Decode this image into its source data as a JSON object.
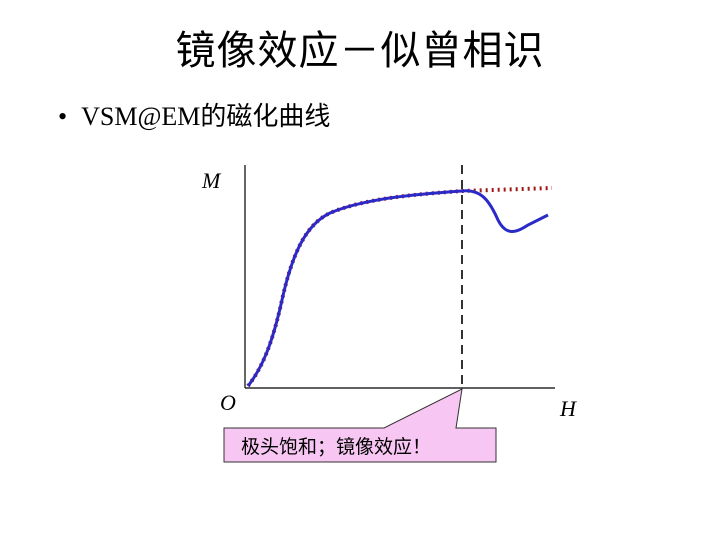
{
  "slide": {
    "title": "镜像效应－似曾相识",
    "bullet_marker": "•",
    "bullet_text": "VSM@EM的磁化曲线"
  },
  "diagram": {
    "y_axis_label": "M",
    "x_axis_label": "H",
    "origin_label": "O",
    "callout_text": "极头饱和；镜像效应！"
  },
  "colors": {
    "measured_curve": "#2a2ac8",
    "ideal_curve": "#a01818",
    "callout_fill": "#f7c6f2",
    "axis": "#000000"
  }
}
